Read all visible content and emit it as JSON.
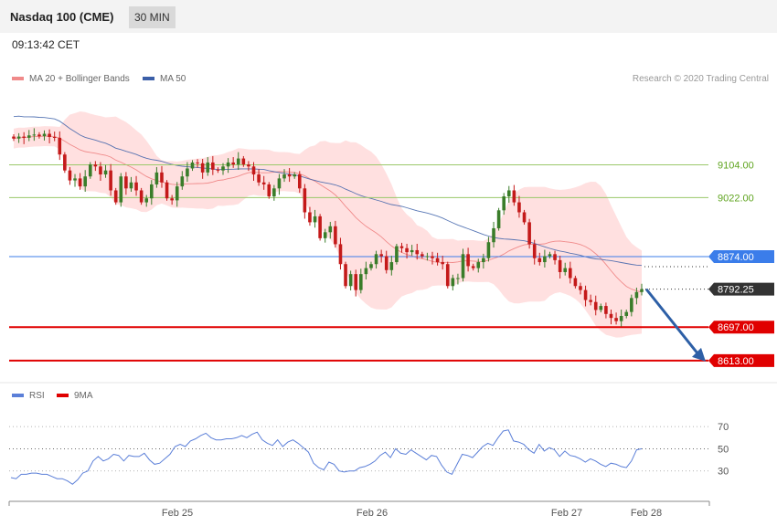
{
  "header": {
    "title": "Nasdaq 100 (CME)",
    "interval": "30 MIN",
    "time": "09:13:42 CET"
  },
  "legend": {
    "ma20": "MA 20 + Bollinger Bands",
    "ma50": "MA 50",
    "credit": "Research © 2020 Trading Central",
    "rsi": "RSI",
    "ma9": "9MA"
  },
  "colors": {
    "up": "#3a7d2a",
    "down": "#c41a1a",
    "bollinger": "#ffd6d6",
    "ma20": "#f08a8a",
    "ma50": "#3b5fa8",
    "support": "#e00000",
    "target_lines": "#9ac86a",
    "current": "#333333",
    "rsi_line": "#5b7fd8"
  },
  "chart_data": {
    "type": "candlestick",
    "x_ticks": [
      "Feb 25",
      "Feb 26",
      "Feb 27",
      "Feb 28"
    ],
    "y_range": [
      8560,
      9300
    ],
    "levels": [
      {
        "name": "resistance-2",
        "value": 9104.0,
        "label": "9104.00",
        "color": "#9ac86a"
      },
      {
        "name": "resistance-1",
        "value": 9022.0,
        "label": "9022.00",
        "color": "#9ac86a"
      },
      {
        "name": "pivot",
        "value": 8874.0,
        "label": "8874.00",
        "color": "#3b7dea"
      },
      {
        "name": "last",
        "value": 8792.25,
        "label": "8792.25",
        "color": "#333333"
      },
      {
        "name": "support-1",
        "value": 8697.0,
        "label": "8697.00",
        "color": "#e00000"
      },
      {
        "name": "support-2",
        "value": 8613.0,
        "label": "8613.00",
        "color": "#e00000"
      }
    ],
    "closes": [
      9170,
      9175,
      9172,
      9178,
      9180,
      9176,
      9182,
      9174,
      9172,
      9130,
      9090,
      9065,
      9070,
      9050,
      9075,
      9105,
      9100,
      9080,
      9090,
      9040,
      9010,
      9075,
      9045,
      9060,
      9040,
      9010,
      9020,
      9055,
      9085,
      9060,
      9020,
      9015,
      9050,
      9075,
      9095,
      9110,
      9108,
      9085,
      9110,
      9092,
      9090,
      9100,
      9110,
      9105,
      9120,
      9105,
      9100,
      9080,
      9060,
      9055,
      9025,
      9045,
      9070,
      9080,
      9075,
      9080,
      9045,
      8985,
      8960,
      8975,
      8920,
      8935,
      8950,
      8905,
      8855,
      8800,
      8830,
      8790,
      8830,
      8845,
      8855,
      8880,
      8875,
      8840,
      8860,
      8900,
      8895,
      8885,
      8890,
      8880,
      8875,
      8875,
      8870,
      8860,
      8855,
      8800,
      8820,
      8820,
      8880,
      8850,
      8845,
      8860,
      8870,
      8910,
      8945,
      8990,
      9025,
      9040,
      9010,
      8985,
      8960,
      8905,
      8870,
      8860,
      8875,
      8880,
      8865,
      8835,
      8845,
      8820,
      8800,
      8790,
      8765,
      8760,
      8740,
      8750,
      8730,
      8720,
      8712,
      8725,
      8735,
      8770,
      8785,
      8792.25
    ],
    "rsi": {
      "y_ticks": [
        70,
        50,
        30
      ],
      "y_range": [
        10,
        80
      ],
      "values": [
        24,
        23,
        27,
        27,
        28,
        28,
        27,
        27,
        25,
        23,
        23,
        21,
        18,
        22,
        28,
        30,
        39,
        43,
        39,
        41,
        45,
        44,
        39,
        44,
        43,
        43,
        46,
        40,
        36,
        37,
        41,
        45,
        52,
        54,
        52,
        57,
        59,
        62,
        64,
        60,
        58,
        58,
        59,
        59,
        60,
        62,
        60,
        63,
        65,
        58,
        55,
        53,
        58,
        52,
        56,
        58,
        55,
        51,
        47,
        37,
        33,
        31,
        38,
        36,
        30,
        29,
        30,
        30,
        33,
        34,
        36,
        39,
        44,
        47,
        42,
        50,
        46,
        45,
        49,
        46,
        43,
        40,
        44,
        43,
        35,
        29,
        27,
        36,
        45,
        44,
        42,
        47,
        52,
        55,
        53,
        60,
        66,
        67,
        57,
        56,
        54,
        49,
        46,
        54,
        48,
        51,
        49,
        43,
        48,
        44,
        43,
        41,
        38,
        41,
        39,
        36,
        34,
        37,
        36,
        34,
        33,
        39,
        49,
        50
      ],
      "ma9": []
    }
  }
}
